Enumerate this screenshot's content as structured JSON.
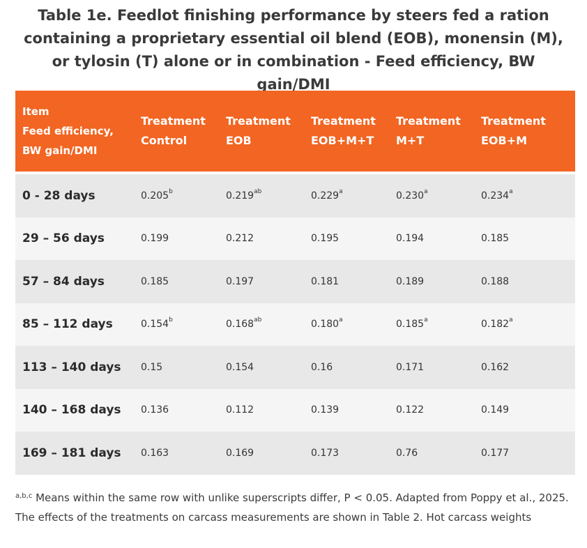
{
  "title": "Table 1e. Feedlot finishing performance by steers fed a ration containing a proprietary essential oil blend (EOB), monensin (M), or tylosin (T) alone or in combination - Feed efficiency, BW gain/DMI",
  "colors": {
    "header_bg": "#f26522",
    "row_odd": "#e8e8e8",
    "row_even": "#f5f5f5"
  },
  "table": {
    "header": {
      "item_line1": "Item",
      "item_line2": "Feed efficiency,",
      "item_line3": "BW gain/DMI",
      "columns": [
        {
          "line1": "Treatment",
          "line2": "Control"
        },
        {
          "line1": "Treatment",
          "line2": "EOB"
        },
        {
          "line1": "Treatment",
          "line2": "EOB+M+T"
        },
        {
          "line1": "Treatment",
          "line2": "M+T"
        },
        {
          "line1": "Treatment",
          "line2": "EOB+M"
        }
      ]
    },
    "rows": [
      {
        "label": "0 - 28 days",
        "cells": [
          {
            "value": "0.205",
            "sup": "b"
          },
          {
            "value": "0.219",
            "sup": "ab"
          },
          {
            "value": "0.229",
            "sup": "a"
          },
          {
            "value": "0.230",
            "sup": "a"
          },
          {
            "value": "0.234",
            "sup": "a"
          }
        ]
      },
      {
        "label": "29 – 56 days",
        "cells": [
          {
            "value": "0.199",
            "sup": ""
          },
          {
            "value": "0.212",
            "sup": ""
          },
          {
            "value": "0.195",
            "sup": ""
          },
          {
            "value": "0.194",
            "sup": ""
          },
          {
            "value": "0.185",
            "sup": ""
          }
        ]
      },
      {
        "label": "57 – 84 days",
        "cells": [
          {
            "value": "0.185",
            "sup": ""
          },
          {
            "value": "0.197",
            "sup": ""
          },
          {
            "value": "0.181",
            "sup": ""
          },
          {
            "value": "0.189",
            "sup": ""
          },
          {
            "value": "0.188",
            "sup": ""
          }
        ]
      },
      {
        "label": "85 – 112 days",
        "cells": [
          {
            "value": "0.154",
            "sup": "b"
          },
          {
            "value": "0.168",
            "sup": "ab"
          },
          {
            "value": "0.180",
            "sup": "a"
          },
          {
            "value": "0.185",
            "sup": "a"
          },
          {
            "value": "0.182",
            "sup": "a"
          }
        ]
      },
      {
        "label": "113 – 140 days",
        "cells": [
          {
            "value": "0.15",
            "sup": ""
          },
          {
            "value": "0.154",
            "sup": ""
          },
          {
            "value": "0.16",
            "sup": ""
          },
          {
            "value": "0.171",
            "sup": ""
          },
          {
            "value": "0.162",
            "sup": ""
          }
        ]
      },
      {
        "label": "140 – 168 days",
        "cells": [
          {
            "value": "0.136",
            "sup": ""
          },
          {
            "value": "0.112",
            "sup": ""
          },
          {
            "value": "0.139",
            "sup": ""
          },
          {
            "value": "0.122",
            "sup": ""
          },
          {
            "value": "0.149",
            "sup": ""
          }
        ]
      },
      {
        "label": "169 – 181 days",
        "cells": [
          {
            "value": "0.163",
            "sup": ""
          },
          {
            "value": "0.169",
            "sup": ""
          },
          {
            "value": "0.173",
            "sup": ""
          },
          {
            "value": "0.76",
            "sup": ""
          },
          {
            "value": "0.177",
            "sup": ""
          }
        ]
      }
    ]
  },
  "footnote": {
    "sup": "a,b,c",
    "text": " Means within the same row with unlike superscripts differ, P < 0.05. Adapted from Poppy et al., 2025. The effects of the treatments on carcass measurements are shown in Table 2. Hot carcass weights"
  }
}
